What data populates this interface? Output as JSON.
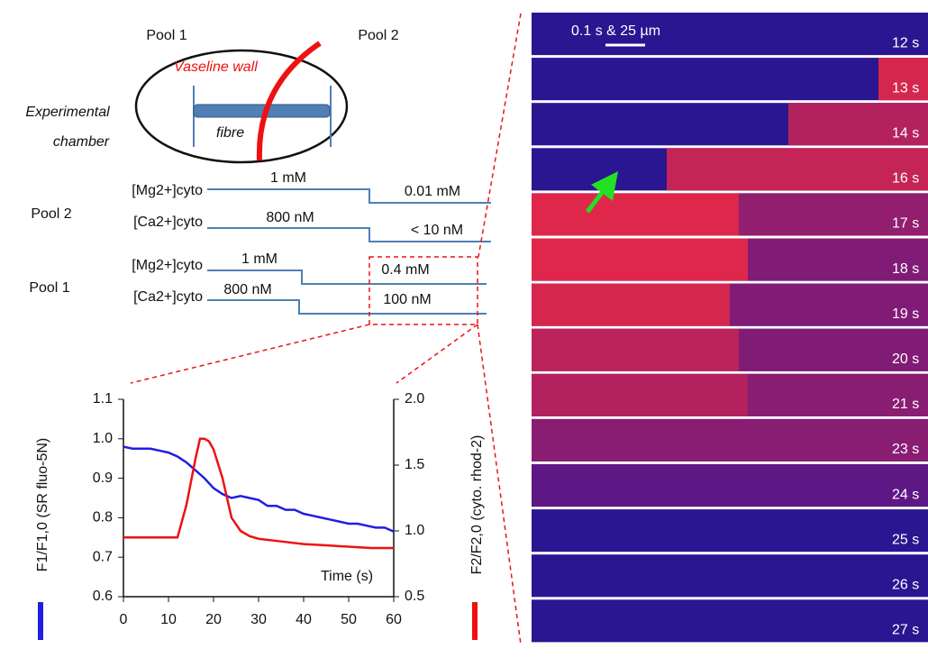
{
  "diagram": {
    "pool_1": "Pool 1",
    "pool_2": "Pool 2",
    "wall": "Vaseline wall",
    "fibre": "fibre",
    "chamber_1": "Experimental",
    "chamber_2": "chamber"
  },
  "protocol": {
    "pool_2": "Pool 2",
    "pool_1": "Pool 1",
    "rows": [
      {
        "label": "[Mg2+]cyto",
        "before": "1 mM",
        "after": "0.01 mM"
      },
      {
        "label": "[Ca2+]cyto",
        "before": "800 nM",
        "after": "< 10 nM"
      },
      {
        "label": "[Mg2+]cyto",
        "before": "1 mM",
        "after": "0.4 mM"
      },
      {
        "label": "[Ca2+]cyto",
        "before": "800 nM",
        "after": "100 nM"
      }
    ]
  },
  "chart_data": {
    "type": "line",
    "x_label": "Time (s)",
    "y_label": "F1/F1,0 (SR fluo-5N)",
    "y2_label": "F2/F2,0 (cyto. rhod-2)",
    "xlim": [
      0,
      60
    ],
    "xticks": [
      0,
      10,
      20,
      30,
      40,
      50,
      60
    ],
    "ylim": [
      0.6,
      1.1
    ],
    "yticks": [
      0.6,
      0.7,
      0.8,
      0.9,
      {
        "value": 1,
        "label": "1.0"
      },
      1.1
    ],
    "y2lim": [
      0.5,
      2.0
    ],
    "y2ticks": [
      0.5,
      {
        "value": 1,
        "label": "1.0"
      },
      1.5,
      {
        "value": 2,
        "label": "2.0"
      }
    ],
    "series": [
      {
        "color": "#1f1fe0",
        "axis": "y",
        "x": [
          0,
          2,
          4,
          6,
          8,
          10,
          12,
          14,
          16,
          18,
          20,
          22,
          24,
          26,
          28,
          30,
          32,
          34,
          36,
          38,
          40,
          42,
          44,
          46,
          48,
          50,
          52,
          54,
          56,
          58,
          60
        ],
        "values": [
          0.98,
          0.975,
          0.975,
          0.975,
          0.97,
          0.965,
          0.955,
          0.94,
          0.92,
          0.9,
          0.875,
          0.86,
          0.85,
          0.855,
          0.85,
          0.845,
          0.83,
          0.83,
          0.82,
          0.82,
          0.81,
          0.805,
          0.8,
          0.795,
          0.79,
          0.785,
          0.785,
          0.78,
          0.775,
          0.775,
          0.765
        ]
      },
      {
        "color": "#ee1111",
        "axis": "y2",
        "x": [
          0,
          6,
          12,
          14,
          16,
          17,
          18,
          19,
          20,
          22,
          24,
          26,
          28,
          30,
          35,
          40,
          45,
          50,
          55,
          60
        ],
        "values": [
          0.95,
          0.95,
          0.95,
          1.2,
          1.55,
          1.7,
          1.7,
          1.68,
          1.62,
          1.4,
          1.1,
          1.0,
          0.96,
          0.94,
          0.92,
          0.9,
          0.89,
          0.88,
          0.87,
          0.87
        ]
      }
    ]
  },
  "image_strip": {
    "scale_bar": "0.1 s & 25 µm",
    "times": [
      "12 s",
      "13 s",
      "14 s",
      "16 s",
      "17 s",
      "18 s",
      "19 s",
      "20 s",
      "21 s",
      "23 s",
      "24 s",
      "25 s",
      "26 s",
      "27 s"
    ]
  }
}
